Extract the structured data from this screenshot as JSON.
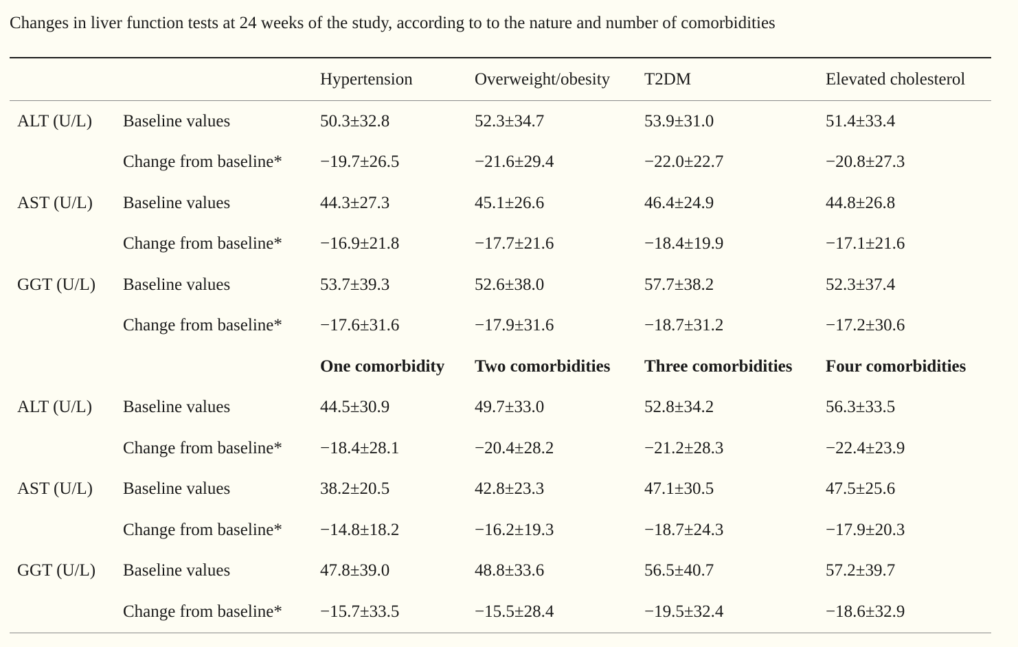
{
  "caption": "Changes in liver function tests at 24 weeks of the study, according to to the nature and number of comorbidities",
  "header": {
    "col0": "",
    "col1": "",
    "cols": [
      "Hypertension",
      "Overweight/obesity",
      "T2DM",
      "Elevated cholesterol"
    ]
  },
  "section1_rows": [
    {
      "test": "ALT (U/L)",
      "measure": "Baseline values",
      "values": [
        "50.3±32.8",
        "52.3±34.7",
        "53.9±31.0",
        "51.4±33.4"
      ]
    },
    {
      "test": "",
      "measure": "Change from baseline*",
      "values": [
        "−19.7±26.5",
        "−21.6±29.4",
        "−22.0±22.7",
        "−20.8±27.3"
      ]
    },
    {
      "test": "AST (U/L)",
      "measure": "Baseline values",
      "values": [
        "44.3±27.3",
        "45.1±26.6",
        "46.4±24.9",
        "44.8±26.8"
      ]
    },
    {
      "test": "",
      "measure": "Change from baseline*",
      "values": [
        "−16.9±21.8",
        "−17.7±21.6",
        "−18.4±19.9",
        "−17.1±21.6"
      ]
    },
    {
      "test": "GGT (U/L)",
      "measure": "Baseline values",
      "values": [
        "53.7±39.3",
        "52.6±38.0",
        "57.7±38.2",
        "52.3±37.4"
      ]
    },
    {
      "test": "",
      "measure": "Change from baseline*",
      "values": [
        "−17.6±31.6",
        "−17.9±31.6",
        "−18.7±31.2",
        "−17.2±30.6"
      ]
    }
  ],
  "section2_header": [
    "One comorbidity",
    "Two comorbidities",
    "Three comorbidities",
    "Four comorbidities"
  ],
  "section2_rows": [
    {
      "test": "ALT (U/L)",
      "measure": "Baseline values",
      "values": [
        "44.5±30.9",
        "49.7±33.0",
        "52.8±34.2",
        "56.3±33.5"
      ]
    },
    {
      "test": "",
      "measure": "Change from baseline*",
      "values": [
        "−18.4±28.1",
        "−20.4±28.2",
        "−21.2±28.3",
        "−22.4±23.9"
      ]
    },
    {
      "test": "AST (U/L)",
      "measure": "Baseline values",
      "values": [
        "38.2±20.5",
        "42.8±23.3",
        "47.1±30.5",
        "47.5±25.6"
      ]
    },
    {
      "test": "",
      "measure": "Change from baseline*",
      "values": [
        "−14.8±18.2",
        "−16.2±19.3",
        "−18.7±24.3",
        "−17.9±20.3"
      ]
    },
    {
      "test": "GGT (U/L)",
      "measure": "Baseline values",
      "values": [
        "47.8±39.0",
        "48.8±33.6",
        "56.5±40.7",
        "57.2±39.7"
      ]
    },
    {
      "test": "",
      "measure": "Change from baseline*",
      "values": [
        "−15.7±33.5",
        "−15.5±28.4",
        "−19.5±32.4",
        "−18.6±32.9"
      ]
    }
  ]
}
